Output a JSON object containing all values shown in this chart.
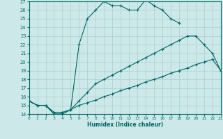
{
  "xlabel": "Humidex (Indice chaleur)",
  "bg_color": "#cce8e8",
  "line_color": "#006666",
  "grid_color": "#aacfcf",
  "xlim": [
    0,
    23
  ],
  "ylim": [
    14,
    27
  ],
  "line1_x": [
    0,
    1,
    2,
    3,
    4,
    5,
    6,
    7,
    8,
    9,
    10,
    11,
    12,
    13,
    14,
    15,
    16,
    17,
    18
  ],
  "line1_y": [
    15.5,
    15.0,
    15.0,
    14.0,
    14.0,
    14.5,
    22.0,
    25.0,
    26.0,
    27.0,
    26.5,
    26.5,
    26.0,
    26.0,
    27.2,
    26.5,
    26.0,
    25.0,
    24.5
  ],
  "line2_x": [
    0,
    1,
    2,
    3,
    4,
    5,
    6,
    7,
    8,
    9,
    10,
    11,
    12,
    13,
    14,
    15,
    16,
    17,
    18,
    19,
    20,
    21,
    22,
    23
  ],
  "line2_y": [
    15.5,
    15.0,
    15.0,
    14.0,
    14.0,
    14.5,
    15.5,
    16.5,
    17.5,
    18.0,
    18.5,
    19.0,
    19.5,
    20.0,
    20.5,
    21.0,
    21.5,
    22.0,
    22.5,
    23.0,
    23.0,
    22.0,
    21.0,
    19.0
  ],
  "line3_x": [
    0,
    1,
    2,
    3,
    4,
    5,
    6,
    7,
    8,
    9,
    10,
    11,
    12,
    13,
    14,
    15,
    16,
    17,
    18,
    19,
    20,
    21,
    22,
    23
  ],
  "line3_y": [
    15.5,
    15.0,
    15.0,
    14.2,
    14.2,
    14.5,
    15.0,
    15.3,
    15.6,
    16.0,
    16.3,
    16.7,
    17.0,
    17.3,
    17.7,
    18.0,
    18.3,
    18.7,
    19.0,
    19.3,
    19.7,
    20.0,
    20.3,
    19.0
  ],
  "ytick_labels": [
    "14",
    "15",
    "16",
    "17",
    "18",
    "19",
    "20",
    "21",
    "22",
    "23",
    "24",
    "25",
    "26",
    "27"
  ],
  "xtick_labels": [
    "0",
    "1",
    "2",
    "3",
    "4",
    "5",
    "6",
    "7",
    "8",
    "9",
    "10",
    "11",
    "12",
    "13",
    "14",
    "15",
    "16",
    "17",
    "18",
    "19",
    "20",
    "21",
    "22",
    "23"
  ]
}
